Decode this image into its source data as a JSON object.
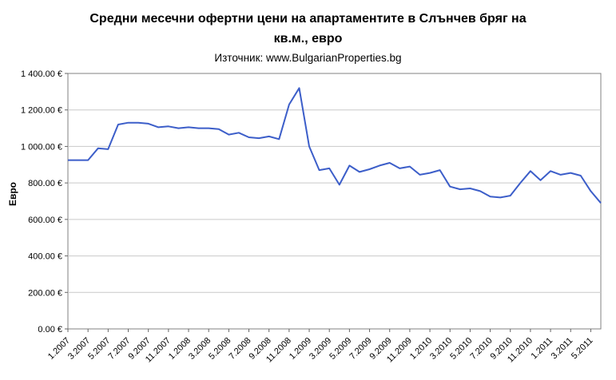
{
  "page": {
    "title_line1": "Средни месечни офертни цени на апартаментите в Слънчев бряг на",
    "title_line2": "кв.м., евро",
    "subtitle": "Източник: www.BulgarianProperties.bg"
  },
  "chart_data": {
    "type": "line",
    "title": "Средни месечни офертни цени на апартаментите в Слънчев бряг на кв.м., евро",
    "subtitle": "Източник: www.BulgarianProperties.bg",
    "xlabel": "",
    "ylabel": "Евро",
    "ylim": [
      0,
      1400
    ],
    "y_tick_step": 200,
    "y_tick_labels": [
      "0.00 €",
      "200.00 €",
      "400.00 €",
      "600.00 €",
      "800.00 €",
      "1 000.00 €",
      "1 200.00 €",
      "1 400.00 €"
    ],
    "x_tick_every": 2,
    "grid": "horizontal",
    "legend": "none",
    "line_color": "#3c5ec9",
    "categories": [
      "1.2007",
      "2.2007",
      "3.2007",
      "4.2007",
      "5.2007",
      "6.2007",
      "7.2007",
      "8.2007",
      "9.2007",
      "10.2007",
      "11.2007",
      "12.2007",
      "1.2008",
      "2.2008",
      "3.2008",
      "4.2008",
      "5.2008",
      "6.2008",
      "7.2008",
      "8.2008",
      "9.2008",
      "10.2008",
      "11.2008",
      "12.2008",
      "1.2009",
      "2.2009",
      "3.2009",
      "4.2009",
      "5.2009",
      "6.2009",
      "7.2009",
      "8.2009",
      "9.2009",
      "10.2009",
      "11.2009",
      "12.2009",
      "1.2010",
      "2.2010",
      "3.2010",
      "4.2010",
      "5.2010",
      "6.2010",
      "7.2010",
      "8.2010",
      "9.2010",
      "10.2010",
      "11.2010",
      "12.2010",
      "1.2011",
      "2.2011",
      "3.2011",
      "4.2011",
      "5.2011",
      "6.2011"
    ],
    "values": [
      925,
      925,
      925,
      990,
      985,
      1120,
      1130,
      1130,
      1125,
      1105,
      1110,
      1100,
      1105,
      1100,
      1100,
      1095,
      1065,
      1075,
      1050,
      1045,
      1055,
      1040,
      1230,
      1320,
      1000,
      870,
      880,
      790,
      895,
      860,
      875,
      895,
      910,
      880,
      890,
      845,
      855,
      870,
      780,
      765,
      770,
      755,
      725,
      720,
      730,
      800,
      865,
      815,
      865,
      845,
      855,
      840,
      755,
      690
    ]
  }
}
